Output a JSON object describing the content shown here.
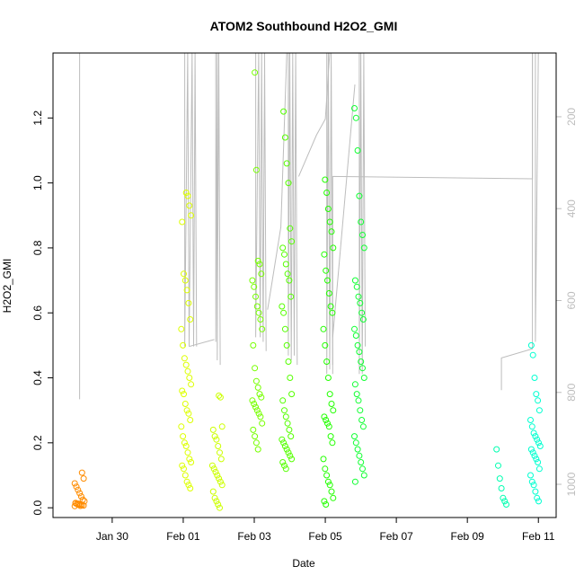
{
  "chart_data": {
    "type": "scatter",
    "title": "ATOM2 Southbound H2O2_GMI",
    "xlabel": "Date",
    "ylabel": "H2O2_GMI",
    "x_axis": {
      "type": "date",
      "range": [
        "2017-01-28T08:00",
        "2017-02-11T12:00"
      ],
      "ticks": [
        {
          "date": "2017-01-30",
          "label": "Jan 30"
        },
        {
          "date": "2017-02-01",
          "label": "Feb 01"
        },
        {
          "date": "2017-02-03",
          "label": "Feb 03"
        },
        {
          "date": "2017-02-05",
          "label": "Feb 05"
        },
        {
          "date": "2017-02-07",
          "label": "Feb 07"
        },
        {
          "date": "2017-02-09",
          "label": "Feb 09"
        },
        {
          "date": "2017-02-11",
          "label": "Feb 11"
        }
      ]
    },
    "y_axis": {
      "range": [
        -0.03,
        1.4
      ],
      "ticks": [
        {
          "value": 0.0,
          "label": "0.0"
        },
        {
          "value": 0.2,
          "label": "0.2"
        },
        {
          "value": 0.4,
          "label": "0.4"
        },
        {
          "value": 0.6,
          "label": "0.6"
        },
        {
          "value": 0.8,
          "label": "0.8"
        },
        {
          "value": 1.0,
          "label": "1.0"
        },
        {
          "value": 1.2,
          "label": "1.2"
        }
      ]
    },
    "y2_axis": {
      "reversed": true,
      "color": "#bdbdbd",
      "range": [
        61.3,
        1072.3
      ],
      "ticks": [
        {
          "value": 200,
          "label": "200"
        },
        {
          "value": 400,
          "label": "400"
        },
        {
          "value": 600,
          "label": "600"
        },
        {
          "value": 800,
          "label": "800"
        },
        {
          "value": 1000,
          "label": "1000"
        }
      ]
    },
    "grid": false,
    "legend": "none",
    "pressure_trace_color": "#bdbdbd",
    "series": [
      {
        "date": "2017-01-29T02:00",
        "color": "#ff8c00",
        "y": [
          0.005,
          0.007,
          0.008,
          0.01,
          0.012,
          0.013,
          0.015,
          0.02,
          0.025,
          0.035,
          0.045,
          0.055,
          0.065,
          0.075,
          0.09,
          0.108,
          0.006,
          0.009,
          0.011,
          0.014
        ]
      },
      {
        "date": "2017-02-01T02:00",
        "color": "#ddff00",
        "y": [
          0.06,
          0.07,
          0.08,
          0.1,
          0.12,
          0.13,
          0.14,
          0.15,
          0.17,
          0.19,
          0.2,
          0.22,
          0.25,
          0.27,
          0.29,
          0.3,
          0.32,
          0.35,
          0.36,
          0.38,
          0.4,
          0.42,
          0.44,
          0.46,
          0.5,
          0.55,
          0.58,
          0.63,
          0.67,
          0.7,
          0.72,
          0.88,
          0.9,
          0.93,
          0.96,
          0.97
        ]
      },
      {
        "date": "2017-02-01T23:00",
        "color": "#ccff00",
        "y": [
          0.0,
          0.01,
          0.02,
          0.03,
          0.05,
          0.07,
          0.08,
          0.09,
          0.1,
          0.11,
          0.12,
          0.13,
          0.15,
          0.17,
          0.19,
          0.21,
          0.22,
          0.24,
          0.25,
          0.34,
          0.345
        ]
      },
      {
        "date": "2017-02-03T02:00",
        "color": "#77ff00",
        "y": [
          0.18,
          0.2,
          0.22,
          0.24,
          0.26,
          0.28,
          0.29,
          0.3,
          0.31,
          0.32,
          0.33,
          0.34,
          0.35,
          0.37,
          0.39,
          0.43,
          0.5,
          0.55,
          0.58,
          0.6,
          0.62,
          0.65,
          0.68,
          0.7,
          0.72,
          0.75,
          0.76,
          1.04,
          1.34
        ]
      },
      {
        "date": "2017-02-03T22:00",
        "color": "#55ff00",
        "y": [
          0.12,
          0.13,
          0.14,
          0.15,
          0.16,
          0.17,
          0.18,
          0.19,
          0.2,
          0.21,
          0.22,
          0.24,
          0.26,
          0.28,
          0.3,
          0.33,
          0.35,
          0.4,
          0.45,
          0.5,
          0.55,
          0.6,
          0.62,
          0.65,
          0.7,
          0.72,
          0.75,
          0.78,
          0.8,
          0.82,
          0.86,
          1.0,
          1.06,
          1.14,
          1.22
        ]
      },
      {
        "date": "2017-02-05T02:00",
        "color": "#22ff00",
        "y": [
          0.01,
          0.02,
          0.03,
          0.05,
          0.07,
          0.08,
          0.1,
          0.12,
          0.15,
          0.2,
          0.22,
          0.25,
          0.26,
          0.27,
          0.28,
          0.3,
          0.32,
          0.35,
          0.4,
          0.45,
          0.5,
          0.55,
          0.6,
          0.62,
          0.66,
          0.7,
          0.73,
          0.78,
          0.8,
          0.85,
          0.88,
          0.92,
          0.97,
          1.01
        ]
      },
      {
        "date": "2017-02-05T23:00",
        "color": "#11ff33",
        "y": [
          0.08,
          0.1,
          0.12,
          0.14,
          0.16,
          0.18,
          0.2,
          0.22,
          0.25,
          0.27,
          0.3,
          0.33,
          0.35,
          0.38,
          0.4,
          0.43,
          0.45,
          0.48,
          0.5,
          0.53,
          0.55,
          0.58,
          0.6,
          0.63,
          0.65,
          0.68,
          0.7,
          0.8,
          0.84,
          0.88,
          0.96,
          1.1,
          1.2,
          1.23
        ]
      },
      {
        "date": "2017-02-09T23:00",
        "color": "#00ffb0",
        "y": [
          0.01,
          0.02,
          0.03,
          0.06,
          0.09,
          0.13,
          0.18
        ]
      },
      {
        "date": "2017-02-10T22:00",
        "color": "#00ffd0",
        "y": [
          0.02,
          0.03,
          0.05,
          0.07,
          0.08,
          0.1,
          0.12,
          0.14,
          0.15,
          0.16,
          0.17,
          0.18,
          0.19,
          0.2,
          0.21,
          0.22,
          0.23,
          0.25,
          0.27,
          0.3,
          0.33,
          0.35,
          0.4,
          0.47,
          0.5
        ]
      }
    ],
    "pressure_lines": [
      {
        "points": [
          [
            "2017-01-29T02:00",
            61.3
          ],
          [
            "2017-01-29T02:00",
            815
          ]
        ]
      },
      {
        "points": [
          [
            "2017-02-01T01:00",
            61.3
          ],
          [
            "2017-02-01T01:00",
            700
          ],
          [
            "2017-02-01T03:00",
            61.3
          ],
          [
            "2017-02-01T04:00",
            700
          ],
          [
            "2017-02-01T06:00",
            61.3
          ],
          [
            "2017-02-01T07:00",
            700
          ],
          [
            "2017-02-01T08:00",
            61.3
          ],
          [
            "2017-02-01T09:00",
            700
          ]
        ]
      },
      {
        "points": [
          [
            "2017-02-01T04:00",
            700
          ],
          [
            "2017-02-01T21:00",
            685
          ]
        ]
      },
      {
        "points": [
          [
            "2017-02-01T22:00",
            61.3
          ],
          [
            "2017-02-01T22:00",
            690
          ],
          [
            "2017-02-01T23:00",
            61.3
          ],
          [
            "2017-02-01T23:00",
            730
          ],
          [
            "2017-02-02T00:00",
            61.3
          ],
          [
            "2017-02-02T01:00",
            740
          ]
        ]
      },
      {
        "points": [
          [
            "2017-02-03T01:00",
            61.3
          ],
          [
            "2017-02-03T01:00",
            680
          ],
          [
            "2017-02-03T03:00",
            61.3
          ],
          [
            "2017-02-03T04:00",
            680
          ],
          [
            "2017-02-03T05:00",
            61.3
          ],
          [
            "2017-02-03T06:00",
            690
          ],
          [
            "2017-02-03T07:00",
            61.3
          ],
          [
            "2017-02-03T08:00",
            710
          ]
        ]
      },
      {
        "points": [
          [
            "2017-02-03T09:00",
            620
          ],
          [
            "2017-02-03T12:00",
            560
          ],
          [
            "2017-02-03T18:00",
            440
          ],
          [
            "2017-02-03T22:00",
            61.3
          ]
        ]
      },
      {
        "points": [
          [
            "2017-02-03T23:00",
            61.3
          ],
          [
            "2017-02-03T23:00",
            720
          ],
          [
            "2017-02-04T00:00",
            61.3
          ],
          [
            "2017-02-04T01:00",
            730
          ],
          [
            "2017-02-04T02:00",
            61.3
          ],
          [
            "2017-02-04T03:00",
            720
          ],
          [
            "2017-02-04T04:00",
            61.3
          ],
          [
            "2017-02-04T05:00",
            740
          ]
        ]
      },
      {
        "points": [
          [
            "2017-02-04T06:00",
            330
          ],
          [
            "2017-02-04T18:00",
            240
          ],
          [
            "2017-02-05T00:00",
            205
          ],
          [
            "2017-02-05T03:00",
            61.3
          ]
        ]
      },
      {
        "points": [
          [
            "2017-02-05T01:00",
            61.3
          ],
          [
            "2017-02-05T01:00",
            760
          ],
          [
            "2017-02-05T02:00",
            61.3
          ],
          [
            "2017-02-05T03:00",
            750
          ],
          [
            "2017-02-05T04:00",
            61.3
          ],
          [
            "2017-02-05T05:00",
            740
          ]
        ]
      },
      {
        "points": [
          [
            "2017-02-05T05:00",
            680
          ],
          [
            "2017-02-05T20:00",
            130
          ]
        ]
      },
      {
        "points": [
          [
            "2017-02-05T05:00",
            760
          ],
          [
            "2017-02-05T05:00",
            330
          ],
          [
            "2017-02-10T20:00",
            335
          ],
          [
            "2017-02-10T20:00",
            61.3
          ]
        ]
      },
      {
        "points": [
          [
            "2017-02-05T23:00",
            61.3
          ],
          [
            "2017-02-05T23:00",
            760
          ],
          [
            "2017-02-06T00:00",
            61.3
          ],
          [
            "2017-02-06T01:00",
            760
          ],
          [
            "2017-02-06T02:00",
            61.3
          ],
          [
            "2017-02-06T03:00",
            700
          ]
        ]
      },
      {
        "points": [
          [
            "2017-02-09T23:00",
            795
          ],
          [
            "2017-02-09T23:00",
            725
          ],
          [
            "2017-02-10T20:00",
            705
          ],
          [
            "2017-02-10T20:00",
            61.3
          ],
          [
            "2017-02-10T22:00",
            61.3
          ],
          [
            "2017-02-10T22:00",
            690
          ],
          [
            "2017-02-11T00:00",
            61.3
          ],
          [
            "2017-02-11T00:00",
            60
          ]
        ]
      }
    ]
  }
}
